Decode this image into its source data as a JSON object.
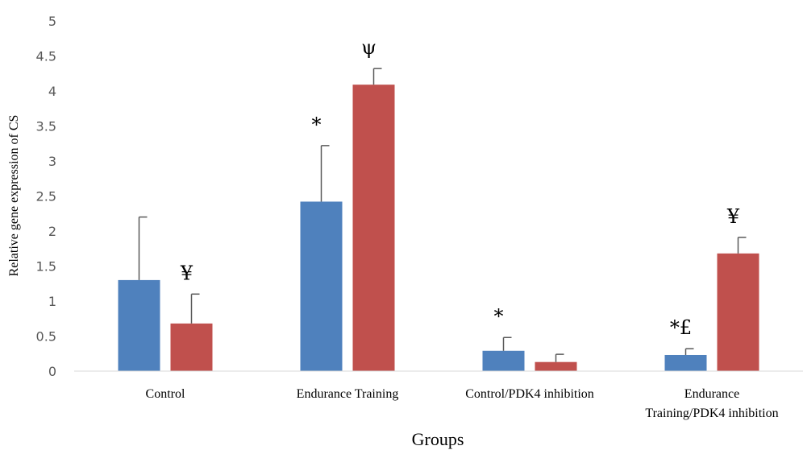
{
  "chart_data": {
    "type": "bar",
    "title": "",
    "xlabel": "Groups",
    "ylabel": "Relative gene expression of CS",
    "ylim": [
      0,
      5
    ],
    "yticks": [
      "0",
      "0.5",
      "1",
      "1.5",
      "2",
      "2.5",
      "3",
      "3.5",
      "4",
      "4.5",
      "5"
    ],
    "grid": false,
    "legend": "none",
    "categories": [
      [
        "Control"
      ],
      [
        "Endurance Training"
      ],
      [
        "Control/PDK4 inhibition"
      ],
      [
        "Endurance",
        "Training/PDK4 inhibition"
      ]
    ],
    "series": [
      {
        "color": "#4f81bd",
        "values": [
          1.3,
          2.42,
          0.29,
          0.23
        ],
        "errors": [
          0.9,
          0.8,
          0.19,
          0.09
        ],
        "markers": [
          "",
          "*",
          "*",
          "*£"
        ]
      },
      {
        "color": "#c0504d",
        "values": [
          0.68,
          4.09,
          0.13,
          1.68
        ],
        "errors": [
          0.42,
          0.23,
          0.11,
          0.23
        ],
        "markers": [
          "¥",
          "ψ",
          "",
          "¥"
        ]
      }
    ]
  }
}
